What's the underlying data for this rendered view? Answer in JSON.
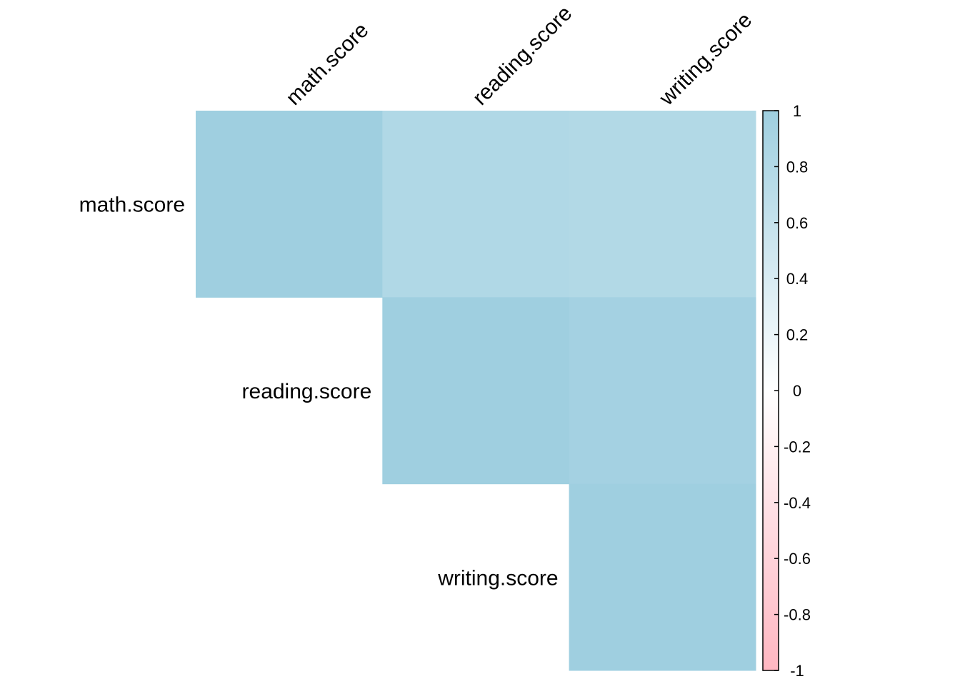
{
  "chart_data": {
    "type": "heatmap",
    "layout": "upper-triangle",
    "row_labels": [
      "math.score",
      "reading.score",
      "writing.score"
    ],
    "col_labels": [
      "math.score",
      "reading.score",
      "writing.score"
    ],
    "cells": [
      {
        "row": 0,
        "col": 0,
        "value": 1.0
      },
      {
        "row": 0,
        "col": 1,
        "value": 0.82
      },
      {
        "row": 0,
        "col": 2,
        "value": 0.8
      },
      {
        "row": 1,
        "col": 1,
        "value": 1.0
      },
      {
        "row": 1,
        "col": 2,
        "value": 0.95
      },
      {
        "row": 2,
        "col": 2,
        "value": 1.0
      }
    ],
    "color_scale": {
      "min": -1,
      "max": 1,
      "low_color": "#FFB6C1",
      "mid_color": "#FFFFFF",
      "high_color": "#9FCFE0"
    },
    "colorbar": {
      "ticks": [
        1,
        0.8,
        0.6,
        0.4,
        0.2,
        0,
        -0.2,
        -0.4,
        -0.6,
        -0.8,
        -1
      ],
      "tick_labels": [
        "1",
        "0.8",
        "0.6",
        "0.4",
        "0.2",
        "0",
        "-0.2",
        "-0.4",
        "-0.6",
        "-0.8",
        "-1"
      ],
      "placement": "right"
    }
  }
}
